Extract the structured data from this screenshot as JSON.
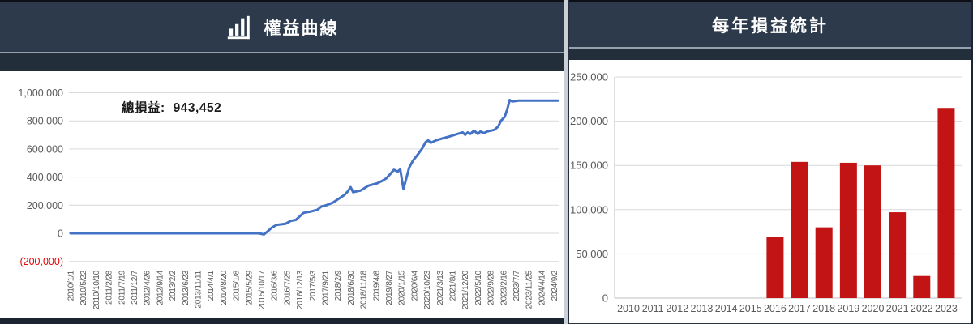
{
  "left_panel": {
    "title": "權益曲線"
  },
  "right_panel": {
    "title": "每年損益統計"
  },
  "colors": {
    "header_bg": "#2d3a4b",
    "line": "#4472c4",
    "bar": "#c21414",
    "grid": "#d9d9d9",
    "axis": "#bfbfbf",
    "tick_text": "#595959",
    "negative_tick": "#e50000"
  },
  "chart_data": [
    {
      "type": "line",
      "title": "權益曲線",
      "total_label": "總損益:",
      "total_value": "943,452",
      "legend_position": "none",
      "grid": "horizontal",
      "ylim": [
        -200000,
        1000000
      ],
      "y_ticks": [
        {
          "value": -200000,
          "label": "(200,000)",
          "color": "#e50000"
        },
        {
          "value": 0,
          "label": "0"
        },
        {
          "value": 200000,
          "label": "200,000"
        },
        {
          "value": 400000,
          "label": "400,000"
        },
        {
          "value": 600000,
          "label": "600,000"
        },
        {
          "value": 800000,
          "label": "800,000"
        },
        {
          "value": 1000000,
          "label": "1,000,000"
        }
      ],
      "x_tick_labels": [
        "2010/1/1",
        "2010/5/22",
        "2010/10/10",
        "2011/2/28",
        "2011/7/19",
        "2011/12/7",
        "2012/4/26",
        "2012/9/14",
        "2013/2/2",
        "2013/6/23",
        "2013/11/11",
        "2014/4/1",
        "2014/8/20",
        "2015/1/8",
        "2015/5/29",
        "2015/10/17",
        "2016/3/6",
        "2016/7/25",
        "2016/12/13",
        "2017/5/3",
        "2017/9/21",
        "2018/2/9",
        "2018/6/30",
        "2018/11/18",
        "2019/4/8",
        "2019/8/27",
        "2020/1/15",
        "2020/6/4",
        "2020/10/23",
        "2021/3/13",
        "2021/8/1",
        "2021/12/20",
        "2022/5/10",
        "2022/9/28",
        "2023/2/16",
        "2023/7/7",
        "2023/11/25",
        "2024/4/14",
        "2024/9/2"
      ],
      "x_unit": "tick-index 0-38",
      "series": [
        {
          "name": "equity",
          "color": "#4472c4",
          "points": [
            [
              0,
              0
            ],
            [
              14.8,
              0
            ],
            [
              15.2,
              -8000
            ],
            [
              15.5,
              15000
            ],
            [
              15.8,
              40000
            ],
            [
              16.2,
              60000
            ],
            [
              16.9,
              68000
            ],
            [
              17.3,
              88000
            ],
            [
              17.7,
              95000
            ],
            [
              18,
              120000
            ],
            [
              18.3,
              145000
            ],
            [
              18.9,
              155000
            ],
            [
              19.4,
              168000
            ],
            [
              19.7,
              190000
            ],
            [
              20.1,
              200000
            ],
            [
              20.6,
              218000
            ],
            [
              21.1,
              248000
            ],
            [
              21.5,
              272000
            ],
            [
              21.8,
              300000
            ],
            [
              22,
              328000
            ],
            [
              22.2,
              293000
            ],
            [
              22.8,
              305000
            ],
            [
              23.4,
              339000
            ],
            [
              24.1,
              356000
            ],
            [
              24.5,
              374000
            ],
            [
              24.8,
              391000
            ],
            [
              25.1,
              420000
            ],
            [
              25.4,
              452000
            ],
            [
              25.7,
              440000
            ],
            [
              25.9,
              455000
            ],
            [
              26.15,
              316000
            ],
            [
              26.6,
              466000
            ],
            [
              26.9,
              517000
            ],
            [
              27.3,
              563000
            ],
            [
              27.6,
              600000
            ],
            [
              27.9,
              649000
            ],
            [
              28.1,
              661000
            ],
            [
              28.3,
              644000
            ],
            [
              28.7,
              661000
            ],
            [
              29.2,
              675000
            ],
            [
              29.8,
              690000
            ],
            [
              30.4,
              707000
            ],
            [
              30.8,
              718000
            ],
            [
              31,
              701000
            ],
            [
              31.2,
              718000
            ],
            [
              31.4,
              707000
            ],
            [
              31.7,
              730000
            ],
            [
              32,
              707000
            ],
            [
              32.2,
              724000
            ],
            [
              32.5,
              713000
            ],
            [
              32.7,
              724000
            ],
            [
              33,
              730000
            ],
            [
              33.3,
              736000
            ],
            [
              33.6,
              760000
            ],
            [
              33.8,
              800000
            ],
            [
              34.1,
              828000
            ],
            [
              34.3,
              880000
            ],
            [
              34.5,
              948000
            ],
            [
              34.7,
              938000
            ],
            [
              35.2,
              943452
            ],
            [
              38.3,
              943452
            ]
          ]
        }
      ]
    },
    {
      "type": "bar",
      "title": "每年損益統計",
      "grid": "horizontal",
      "ylim": [
        0,
        250000
      ],
      "bar_color": "#c21414",
      "categories": [
        "2010",
        "2011",
        "2012",
        "2013",
        "2014",
        "2015",
        "2016",
        "2017",
        "2018",
        "2019",
        "2020",
        "2021",
        "2022",
        "2023"
      ],
      "values": [
        0,
        0,
        0,
        0,
        0,
        0,
        69000,
        154000,
        80000,
        153000,
        150000,
        97000,
        25000,
        215000
      ],
      "y_ticks": [
        {
          "value": 0,
          "label": "0"
        },
        {
          "value": 50000,
          "label": "50,000"
        },
        {
          "value": 100000,
          "label": "100,000"
        },
        {
          "value": 150000,
          "label": "150,000"
        },
        {
          "value": 200000,
          "label": "200,000"
        },
        {
          "value": 250000,
          "label": "250,000"
        }
      ]
    }
  ]
}
